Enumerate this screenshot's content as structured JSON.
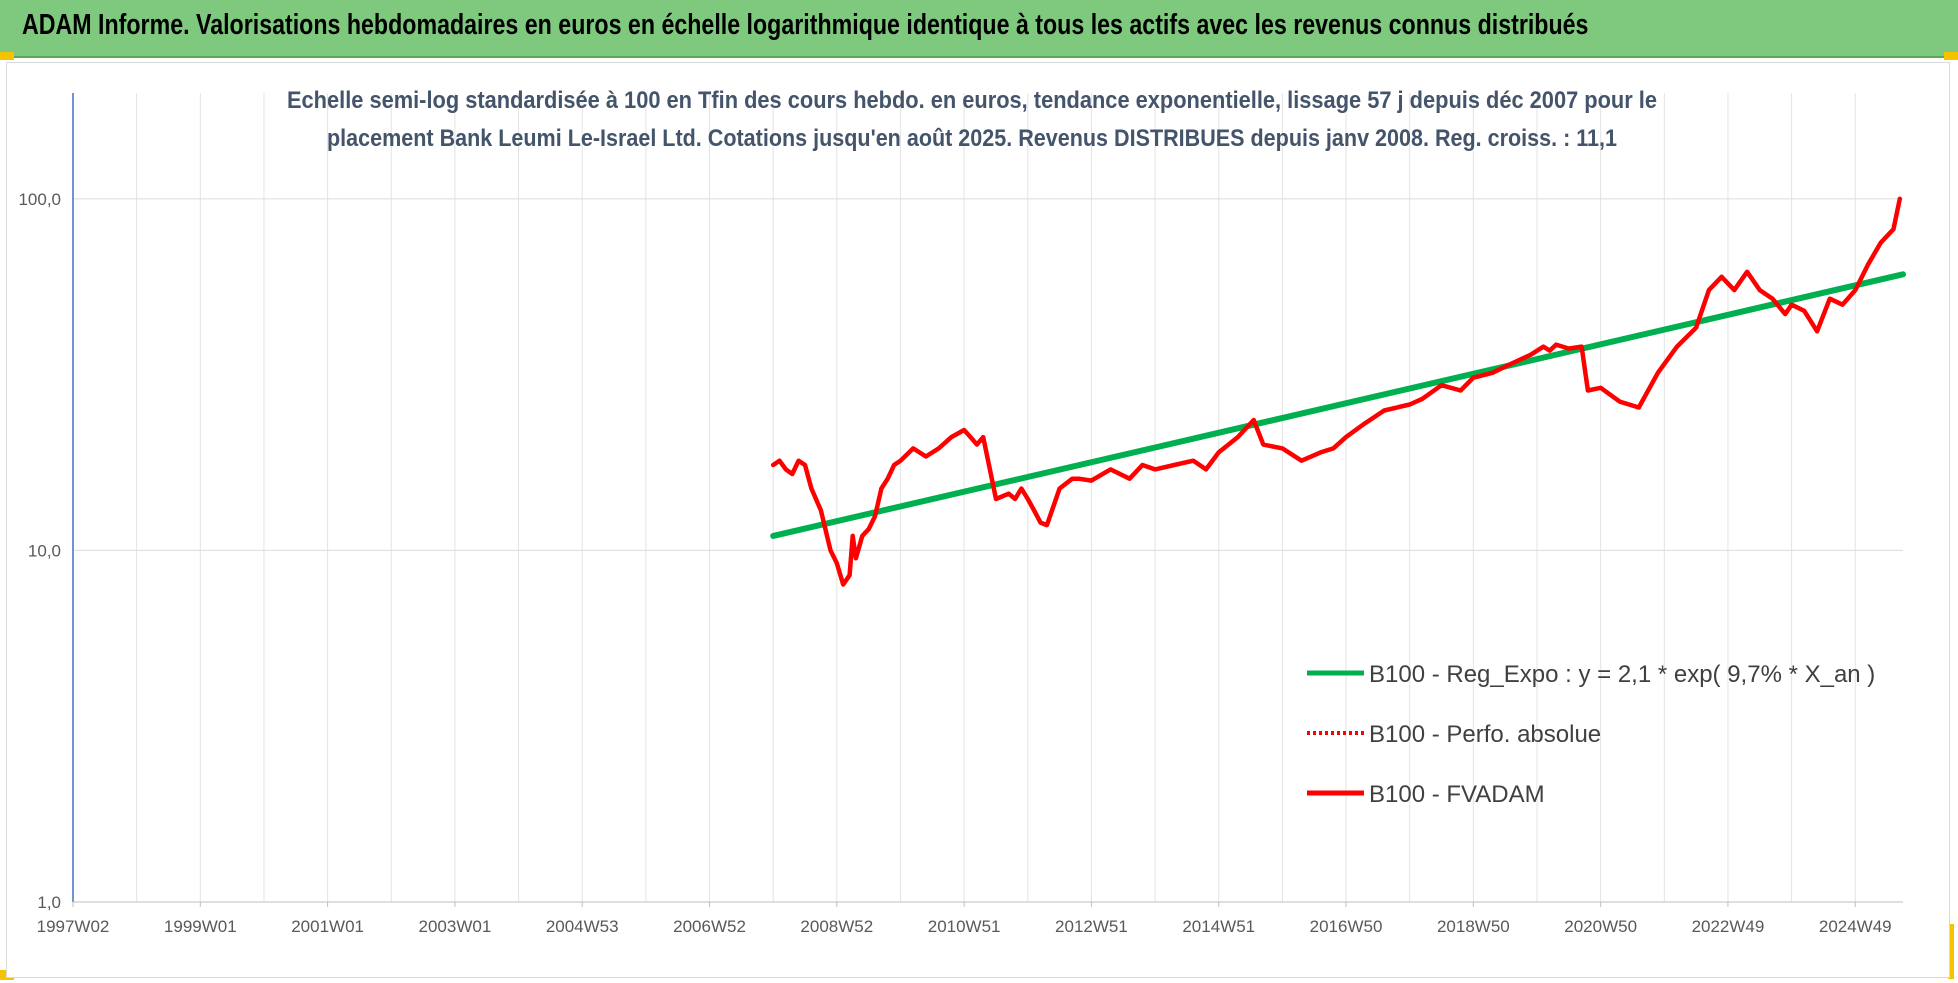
{
  "banner": {
    "title": "ADAM Informe. Valorisations hebdomadaires en euros en échelle logarithmique identique à tous les actifs avec les revenus connus distribués",
    "color": "#7ec97e"
  },
  "chart_data": {
    "type": "line",
    "title_lines": [
      "Echelle semi-log standardisée à 100 en Tfin des cours hebdo. en euros, tendance exponentielle, lissage 57 j depuis déc 2007 pour le",
      "placement Bank Leumi Le-Israel Ltd. Cotations jusqu'en août 2025. Revenus DISTRIBUES depuis janv 2008. Reg. croiss. : 11,1"
    ],
    "y_scale": "log",
    "ylim": [
      1,
      200
    ],
    "y_ticks": [
      "1,0",
      "10,0",
      "100,0"
    ],
    "x_range": [
      1997.0,
      2025.75
    ],
    "x_ticks": [
      {
        "label": "1997W02",
        "x": 1997.0
      },
      {
        "label": "1999W01",
        "x": 1999.0
      },
      {
        "label": "2001W01",
        "x": 2001.0
      },
      {
        "label": "2003W01",
        "x": 2003.0
      },
      {
        "label": "2004W53",
        "x": 2005.0
      },
      {
        "label": "2006W52",
        "x": 2007.0
      },
      {
        "label": "2008W52",
        "x": 2009.0
      },
      {
        "label": "2010W51",
        "x": 2011.0
      },
      {
        "label": "2012W51",
        "x": 2013.0
      },
      {
        "label": "2014W51",
        "x": 2015.0
      },
      {
        "label": "2016W50",
        "x": 2017.0
      },
      {
        "label": "2018W50",
        "x": 2019.0
      },
      {
        "label": "2020W50",
        "x": 2021.0
      },
      {
        "label": "2022W49",
        "x": 2023.0
      },
      {
        "label": "2024W49",
        "x": 2025.0
      }
    ],
    "grid": true,
    "legend_position": "right-middle",
    "series": [
      {
        "name": "B100 - Reg_Expo : y = 2,1 * exp( 9,7% *  X_an )",
        "color": "#00b050",
        "style": "solid-thick",
        "x": [
          2008.0,
          2025.75
        ],
        "values": [
          11.0,
          61.0
        ]
      },
      {
        "name": "B100 - Perfo. absolue",
        "color": "#ff0000",
        "style": "dotted",
        "x": [],
        "values": []
      },
      {
        "name": "B100 - FVADAM",
        "color": "#ff0000",
        "style": "solid",
        "x": [
          2008.0,
          2008.1,
          2008.2,
          2008.3,
          2008.4,
          2008.5,
          2008.6,
          2008.75,
          2008.9,
          2009.0,
          2009.1,
          2009.2,
          2009.25,
          2009.3,
          2009.4,
          2009.5,
          2009.6,
          2009.7,
          2009.8,
          2009.9,
          2010.0,
          2010.2,
          2010.4,
          2010.6,
          2010.8,
          2011.0,
          2011.1,
          2011.2,
          2011.3,
          2011.5,
          2011.7,
          2011.8,
          2011.9,
          2012.0,
          2012.1,
          2012.2,
          2012.3,
          2012.5,
          2012.7,
          2012.8,
          2013.0,
          2013.3,
          2013.6,
          2013.8,
          2014.0,
          2014.3,
          2014.6,
          2014.8,
          2015.0,
          2015.3,
          2015.55,
          2015.7,
          2016.0,
          2016.3,
          2016.6,
          2016.8,
          2017.0,
          2017.3,
          2017.6,
          2018.0,
          2018.2,
          2018.5,
          2018.8,
          2019.0,
          2019.3,
          2019.6,
          2019.9,
          2020.1,
          2020.2,
          2020.3,
          2020.5,
          2020.7,
          2020.8,
          2021.0,
          2021.3,
          2021.6,
          2021.9,
          2022.2,
          2022.5,
          2022.7,
          2022.9,
          2023.1,
          2023.3,
          2023.5,
          2023.7,
          2023.9,
          2024.0,
          2024.2,
          2024.4,
          2024.6,
          2024.8,
          2025.0,
          2025.2,
          2025.4,
          2025.6,
          2025.7
        ],
        "values": [
          17.5,
          18.0,
          17.0,
          16.5,
          18.0,
          17.5,
          15.0,
          13.0,
          10.0,
          9.2,
          8.0,
          8.5,
          11.0,
          9.5,
          11.0,
          11.5,
          12.5,
          15.0,
          16.0,
          17.5,
          18.0,
          19.5,
          18.5,
          19.5,
          21.0,
          22.0,
          21.0,
          20.0,
          21.0,
          14.0,
          14.5,
          14.0,
          15.0,
          14.0,
          13.0,
          12.0,
          11.8,
          15.0,
          16.0,
          16.0,
          15.8,
          17.0,
          16.0,
          17.5,
          17.0,
          17.5,
          18.0,
          17.0,
          19.0,
          21.0,
          23.5,
          20.0,
          19.5,
          18.0,
          19.0,
          19.5,
          21.0,
          23.0,
          25.0,
          26.0,
          27.0,
          29.5,
          28.5,
          31.0,
          32.0,
          34.0,
          36.0,
          38.0,
          37.0,
          38.5,
          37.5,
          38.0,
          28.5,
          29.0,
          26.5,
          25.5,
          32.0,
          38.0,
          43.0,
          55.0,
          60.0,
          55.0,
          62.0,
          55.0,
          52.0,
          47.0,
          50.0,
          48.0,
          42.0,
          52.0,
          50.0,
          55.0,
          65.0,
          75.0,
          82.0,
          100.0
        ]
      }
    ]
  }
}
